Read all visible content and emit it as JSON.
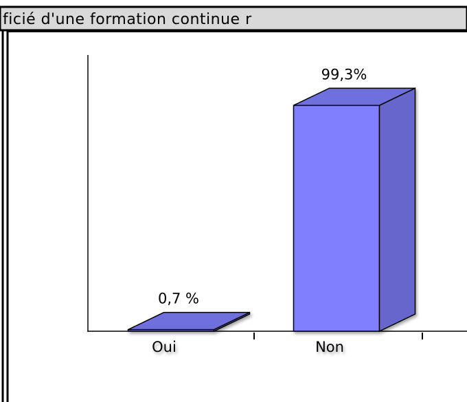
{
  "chart_data": {
    "type": "bar3d",
    "title": "ficié d'une  formation continue r",
    "categories": [
      "Oui",
      "Non"
    ],
    "values": [
      0.7,
      99.3
    ],
    "value_labels": [
      "0,7 %",
      "99,3%"
    ],
    "color": "#8080ff",
    "ylim": [
      0,
      100
    ]
  }
}
